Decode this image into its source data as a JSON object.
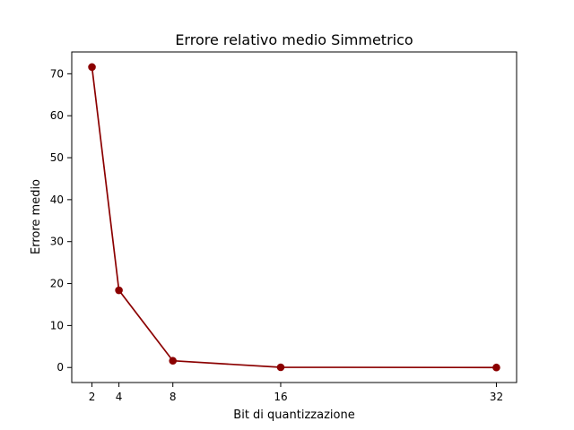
{
  "chart_data": {
    "type": "line",
    "title": "Errore relativo medio Simmetrico",
    "xlabel": "Bit di quantizzazione",
    "ylabel": "Errore medio",
    "x": [
      2,
      4,
      8,
      16,
      32
    ],
    "series": [
      {
        "values": [
          71.6,
          18.4,
          1.6,
          0.05,
          0.0
        ],
        "color": "#8b0000"
      }
    ],
    "xticks": [
      2,
      4,
      8,
      16,
      32
    ],
    "yticks": [
      0,
      10,
      20,
      30,
      40,
      50,
      60,
      70
    ],
    "xlim": [
      0.5,
      33.5
    ],
    "ylim": [
      -3.58,
      75.2
    ],
    "grid": false,
    "marker": "circle"
  }
}
